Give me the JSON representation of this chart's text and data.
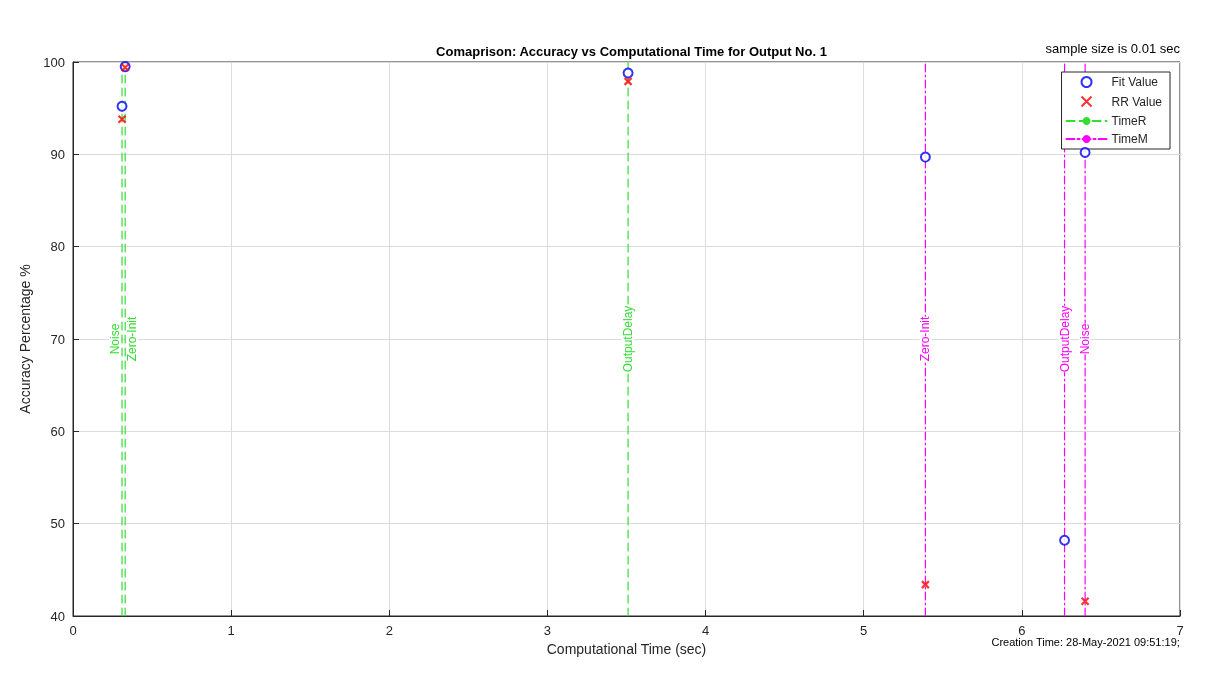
{
  "chart_data": {
    "type": "scatter",
    "title": "Comaprison: Accuracy vs Computational Time for Output No. 1",
    "xlabel": "Computational Time (sec)",
    "ylabel": "Accuracy Percentage %",
    "series": [
      {
        "name": "Fit Value",
        "marker": "circle",
        "color": "#0000ff",
        "x": [
          0.31,
          0.33,
          3.51,
          5.39,
          6.27,
          6.4
        ],
        "values": [
          95.2,
          99.5,
          98.8,
          89.7,
          48.2,
          90.2
        ]
      },
      {
        "name": "RR Value",
        "marker": "cross",
        "color": "#ff0000",
        "x": [
          0.31,
          0.33,
          3.51,
          5.39,
          6.4
        ],
        "values": [
          93.8,
          99.4,
          97.9,
          43.4,
          41.6
        ]
      },
      {
        "name": "TimeR",
        "type": "line",
        "line_style": "dashed",
        "color": "#33dd33",
        "x": [
          0.31,
          0.31,
          null,
          0.33,
          0.33,
          null,
          3.51,
          3.51
        ],
        "values": [
          40,
          100,
          null,
          40,
          100,
          null,
          40,
          100
        ]
      },
      {
        "name": "TimeM",
        "type": "line",
        "line_style": "dashdot",
        "color": "#ff00ff",
        "x": [
          5.39,
          5.39,
          null,
          6.27,
          6.27,
          null,
          6.4,
          6.4
        ],
        "values": [
          40,
          100,
          null,
          40,
          100,
          null,
          40,
          100
        ]
      }
    ],
    "annotations": [
      {
        "text": "Noise",
        "x": 0.31,
        "y": 70
      },
      {
        "text": "Zero-Init",
        "x": 0.33,
        "y": 70
      },
      {
        "text": "OutputDelay",
        "x": 3.51,
        "y": 70
      },
      {
        "text": "Zero-Init",
        "x": 5.39,
        "y": 70
      },
      {
        "text": "OutputDelay",
        "x": 6.27,
        "y": 70
      },
      {
        "text": "Noise",
        "x": 6.4,
        "y": 70
      },
      "sample size is 0.01 sec",
      "Creation Time: 28-May-2021 09:51:19;"
    ],
    "xlim": [
      0,
      7
    ],
    "xticks": [
      0,
      1,
      2,
      3,
      4,
      5,
      6,
      7
    ],
    "ylim": [
      40,
      100
    ],
    "yticks": [
      40,
      50,
      60,
      70,
      80,
      90,
      100
    ],
    "grid": true,
    "legend": "top right"
  }
}
